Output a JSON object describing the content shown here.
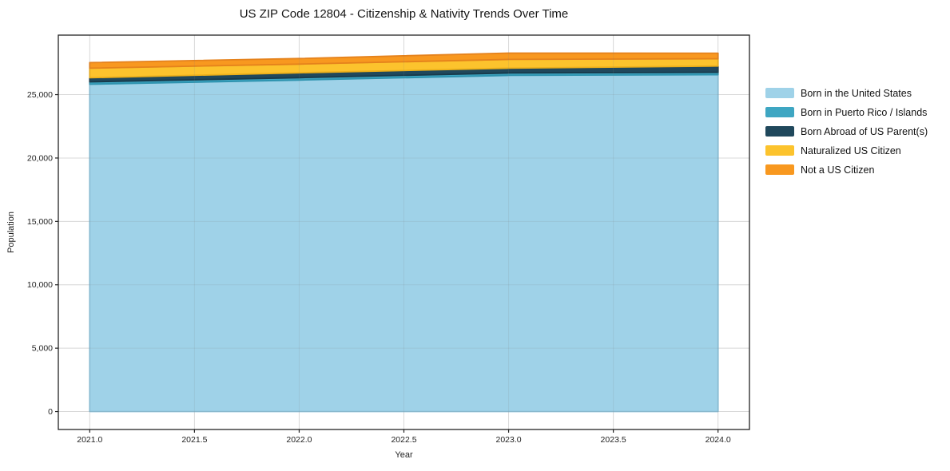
{
  "title": "US ZIP Code 12804 - Citizenship & Nativity Trends Over Time",
  "axes": {
    "xlabel": "Year",
    "ylabel": "Population"
  },
  "chart_data": {
    "type": "area",
    "stacked": true,
    "title": "US ZIP Code 12804 - Citizenship & Nativity Trends Over Time",
    "xlabel": "Year",
    "ylabel": "Population",
    "x": [
      2021,
      2022,
      2023,
      2024
    ],
    "series": [
      {
        "name": "Born in the United States",
        "color": "#9fd2e8",
        "edge_color": "#8cc2db",
        "values": [
          25820,
          26150,
          26520,
          26570
        ]
      },
      {
        "name": "Born in Puerto Rico / Islands",
        "color": "#3ea6c2",
        "edge_color": "#2e93af",
        "values": [
          190,
          190,
          190,
          190
        ]
      },
      {
        "name": "Born Abroad of US Parent(s)",
        "color": "#20485c",
        "edge_color": "#183a4b",
        "values": [
          320,
          380,
          380,
          500
        ]
      },
      {
        "name": "Naturalized US Citizen",
        "color": "#fcc32d",
        "edge_color": "#edb01a",
        "values": [
          760,
          690,
          690,
          570
        ]
      },
      {
        "name": "Not a US Citizen",
        "color": "#f8981f",
        "edge_color": "#e5821c",
        "values": [
          440,
          440,
          500,
          440
        ]
      }
    ],
    "totals": [
      27530,
      27850,
      28280,
      28270
    ],
    "xticks": [
      2021.0,
      2021.5,
      2022.0,
      2022.5,
      2023.0,
      2023.5,
      2024.0
    ],
    "xtick_labels": [
      "2021.0",
      "2021.5",
      "2022.0",
      "2022.5",
      "2023.0",
      "2023.5",
      "2024.0"
    ],
    "yticks": [
      0,
      5000,
      10000,
      15000,
      20000,
      25000
    ],
    "ytick_labels": [
      "0",
      "5,000",
      "10,000",
      "15,000",
      "20,000",
      "25,000"
    ],
    "xlim": [
      2020.85,
      2024.15
    ],
    "ylim": [
      -1414,
      29694
    ],
    "grid": true,
    "grid_color": "#e8e8e8",
    "grid_overlay_color": "rgba(130,130,130,0.15)",
    "frame_color": "#222222",
    "legend_position": "right"
  }
}
